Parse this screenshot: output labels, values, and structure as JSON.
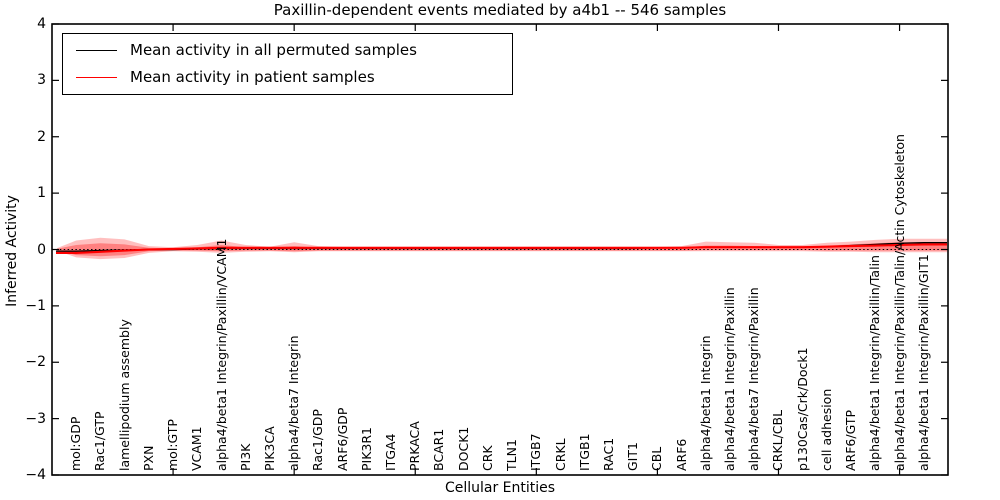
{
  "title": "Paxillin-dependent events mediated by a4b1 -- 546 samples",
  "legend": {
    "entries": [
      {
        "label": "Mean activity in all permuted samples",
        "color": "#000000"
      },
      {
        "label": "Mean activity in patient samples",
        "color": "#ff0000"
      }
    ],
    "position": "upper left"
  },
  "colors": {
    "band": "#ff0000",
    "permuted_line": "#000000",
    "patient_line": "#ff0000",
    "frame": "#000000",
    "background": "#ffffff"
  },
  "chart_data": {
    "type": "line",
    "title": "Paxillin-dependent events mediated by a4b1 -- 546 samples",
    "xlabel": "Cellular Entities",
    "ylabel": "Inferred Activity",
    "ylim": [
      -4,
      4
    ],
    "yticks": [
      4,
      3,
      2,
      1,
      0,
      -1,
      -2,
      -3,
      -4
    ],
    "xlim": [
      0,
      37
    ],
    "xticks_major": [
      5,
      10,
      15,
      20,
      25,
      30,
      35
    ],
    "grid": false,
    "zero_reference_line": 0,
    "legend_position": "upper left",
    "categories": [
      "mol:GDP",
      "Rac1/GTP",
      "lamellipodium assembly",
      "PXN",
      "mol:GTP",
      "VCAM1",
      "alpha4/beta1 Integrin/Paxillin/VCAM1",
      "PI3K",
      "PIK3CA",
      "alpha4/beta7 Integrin",
      "Rac1/GDP",
      "ARF6/GDP",
      "PIK3R1",
      "ITGA4",
      "PRKACA",
      "BCAR1",
      "DOCK1",
      "CRK",
      "TLN1",
      "ITGB7",
      "CRKL",
      "ITGB1",
      "RAC1",
      "GIT1",
      "CBL",
      "ARF6",
      "alpha4/beta1 Integrin",
      "alpha4/beta1 Integrin/Paxillin",
      "alpha4/beta7 Integrin/Paxillin",
      "CRKL/CBL",
      "p130Cas/Crk/Dock1",
      "cell adhesion",
      "ARF6/GTP",
      "alpha4/beta1 Integrin/Paxillin/Talin",
      "alpha4/beta1 Integrin/Paxillin/Talin/Actin Cytoskeleton",
      "alpha4/beta1 Integrin/Paxillin/GIT1"
    ],
    "series": [
      {
        "name": "Mean activity in all permuted samples",
        "color": "#000000",
        "values": [
          -0.03,
          -0.02,
          -0.01,
          0,
          0,
          0.01,
          0.02,
          0.02,
          0.02,
          0.02,
          0.02,
          0.02,
          0.02,
          0.02,
          0.02,
          0.02,
          0.02,
          0.02,
          0.02,
          0.02,
          0.02,
          0.02,
          0.02,
          0.02,
          0.03,
          0.03,
          0.04,
          0.04,
          0.04,
          0.04,
          0.04,
          0.05,
          0.07,
          0.09,
          0.11,
          0.12
        ]
      },
      {
        "name": "Mean activity in patient samples",
        "color": "#ff0000",
        "values": [
          -0.06,
          -0.04,
          -0.02,
          0,
          0.01,
          0.02,
          0.03,
          0.03,
          0.03,
          0.03,
          0.03,
          0.03,
          0.03,
          0.03,
          0.03,
          0.03,
          0.03,
          0.03,
          0.03,
          0.03,
          0.03,
          0.03,
          0.03,
          0.03,
          0.03,
          0.03,
          0.04,
          0.04,
          0.04,
          0.04,
          0.04,
          0.05,
          0.06,
          0.07,
          0.08,
          0.09
        ]
      }
    ],
    "band": {
      "color": "#ff0000",
      "outer_top": [
        0.16,
        0.21,
        0.18,
        0.06,
        0.04,
        0.08,
        0.16,
        0.08,
        0.05,
        0.13,
        0.06,
        0.05,
        0.05,
        0.05,
        0.05,
        0.05,
        0.05,
        0.05,
        0.05,
        0.05,
        0.05,
        0.05,
        0.05,
        0.05,
        0.05,
        0.06,
        0.14,
        0.13,
        0.12,
        0.08,
        0.08,
        0.12,
        0.14,
        0.17,
        0.19,
        0.19
      ],
      "outer_bottom": [
        -0.14,
        -0.17,
        -0.15,
        -0.06,
        -0.03,
        -0.04,
        -0.06,
        -0.04,
        -0.03,
        -0.05,
        -0.03,
        -0.03,
        -0.03,
        -0.03,
        -0.03,
        -0.03,
        -0.03,
        -0.03,
        -0.03,
        -0.03,
        -0.03,
        -0.03,
        -0.03,
        -0.03,
        -0.03,
        -0.03,
        -0.03,
        -0.03,
        -0.03,
        -0.03,
        -0.03,
        -0.04,
        -0.04,
        -0.05,
        -0.05,
        -0.05
      ],
      "inner_top": [
        0.08,
        0.11,
        0.09,
        0.03,
        0.02,
        0.04,
        0.08,
        0.04,
        0.03,
        0.06,
        0.03,
        0.03,
        0.03,
        0.03,
        0.03,
        0.03,
        0.03,
        0.03,
        0.03,
        0.03,
        0.03,
        0.03,
        0.03,
        0.03,
        0.03,
        0.03,
        0.07,
        0.07,
        0.06,
        0.05,
        0.05,
        0.07,
        0.09,
        0.11,
        0.13,
        0.13
      ],
      "inner_bottom": [
        -0.1,
        -0.12,
        -0.1,
        -0.03,
        -0.02,
        -0.02,
        -0.03,
        -0.02,
        -0.02,
        -0.03,
        -0.02,
        -0.02,
        -0.02,
        -0.02,
        -0.02,
        -0.02,
        -0.02,
        -0.02,
        -0.02,
        -0.02,
        -0.02,
        -0.02,
        -0.02,
        -0.02,
        -0.02,
        -0.02,
        -0.01,
        -0.01,
        -0.01,
        -0.01,
        -0.01,
        -0.02,
        -0.02,
        -0.02,
        -0.02,
        -0.02
      ]
    }
  }
}
